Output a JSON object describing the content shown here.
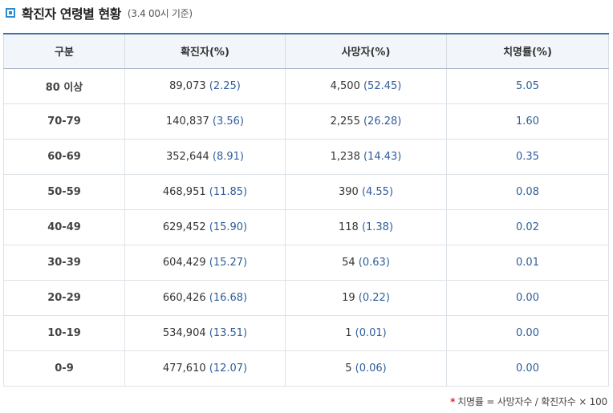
{
  "header": {
    "title": "확진자 연령별 현황",
    "subtitle": "(3.4 00시 기준)"
  },
  "table": {
    "columns": [
      "구분",
      "확진자(%)",
      "사망자(%)",
      "치명률(%)"
    ],
    "rows": [
      {
        "age": "80 이상",
        "confirmed": "89,073",
        "confirmed_pct": "(2.25)",
        "deaths": "4,500",
        "deaths_pct": "(52.45)",
        "fatality": "5.05"
      },
      {
        "age": "70-79",
        "confirmed": "140,837",
        "confirmed_pct": "(3.56)",
        "deaths": "2,255",
        "deaths_pct": "(26.28)",
        "fatality": "1.60"
      },
      {
        "age": "60-69",
        "confirmed": "352,644",
        "confirmed_pct": "(8.91)",
        "deaths": "1,238",
        "deaths_pct": "(14.43)",
        "fatality": "0.35"
      },
      {
        "age": "50-59",
        "confirmed": "468,951",
        "confirmed_pct": "(11.85)",
        "deaths": "390",
        "deaths_pct": "(4.55)",
        "fatality": "0.08"
      },
      {
        "age": "40-49",
        "confirmed": "629,452",
        "confirmed_pct": "(15.90)",
        "deaths": "118",
        "deaths_pct": "(1.38)",
        "fatality": "0.02"
      },
      {
        "age": "30-39",
        "confirmed": "604,429",
        "confirmed_pct": "(15.27)",
        "deaths": "54",
        "deaths_pct": "(0.63)",
        "fatality": "0.01"
      },
      {
        "age": "20-29",
        "confirmed": "660,426",
        "confirmed_pct": "(16.68)",
        "deaths": "19",
        "deaths_pct": "(0.22)",
        "fatality": "0.00"
      },
      {
        "age": "10-19",
        "confirmed": "534,904",
        "confirmed_pct": "(13.51)",
        "deaths": "1",
        "deaths_pct": "(0.01)",
        "fatality": "0.00"
      },
      {
        "age": "0-9",
        "confirmed": "477,610",
        "confirmed_pct": "(12.07)",
        "deaths": "5",
        "deaths_pct": "(0.06)",
        "fatality": "0.00"
      }
    ]
  },
  "footnote": {
    "marker": "*",
    "text": "치명률 = 사망자수 / 확진자수 × 100"
  },
  "icons": {
    "title_bullet": "square-bullet-icon"
  },
  "colors": {
    "accent": "#2a8ad4",
    "header_border": "#3f6fa8",
    "header_bg": "#f2f6fb",
    "value_blue": "#2e5d9a",
    "footnote_star": "#d92b2b"
  }
}
